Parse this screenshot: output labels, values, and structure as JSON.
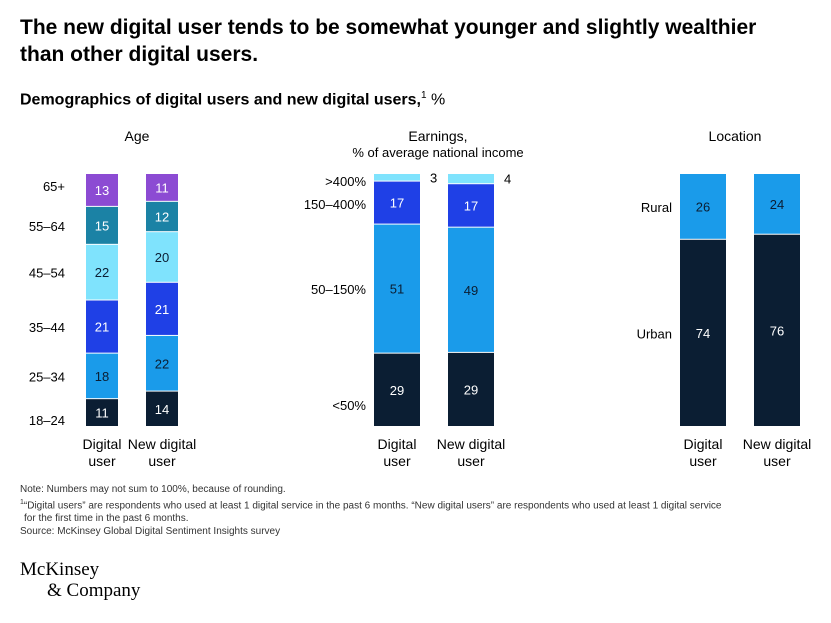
{
  "headline": "The new digital user tends to be somewhat younger and slightly wealthier than other digital users.",
  "subtitle": {
    "text": "Demographics of digital users and new digital users,",
    "footnote_mark": "1",
    "unit": " %"
  },
  "colors": {
    "navy": "#0b1e33",
    "blue": "#1f40e6",
    "mid_blue": "#1a9bea",
    "light_cyan": "#7fe3fd",
    "teal": "#1b82a5",
    "purple": "#8c4bd3",
    "white_text": "#ffffff",
    "dark_text": "#0b1e33"
  },
  "chart_data": [
    {
      "type": "bar",
      "stacked": true,
      "title": "Age",
      "subtitle": "",
      "categories": [
        "Digital user",
        "New digital user"
      ],
      "segment_labels": [
        "18–24",
        "25–34",
        "35–44",
        "45–54",
        "55–64",
        "65+"
      ],
      "series": [
        {
          "name": "18–24",
          "values": [
            11,
            14
          ],
          "color": "#0b1e33",
          "text": "light"
        },
        {
          "name": "25–34",
          "values": [
            18,
            22
          ],
          "color": "#1a9bea",
          "text": "dark"
        },
        {
          "name": "35–44",
          "values": [
            21,
            21
          ],
          "color": "#1f40e6",
          "text": "light"
        },
        {
          "name": "45–54",
          "values": [
            22,
            20
          ],
          "color": "#7fe3fd",
          "text": "dark"
        },
        {
          "name": "55–64",
          "values": [
            15,
            12
          ],
          "color": "#1b82a5",
          "text": "light"
        },
        {
          "name": "65+",
          "values": [
            13,
            11
          ],
          "color": "#8c4bd3",
          "text": "light"
        }
      ],
      "ylim": [
        0,
        100
      ]
    },
    {
      "type": "bar",
      "stacked": true,
      "title": "Earnings,",
      "subtitle": "% of average national income",
      "categories": [
        "Digital user",
        "New digital user"
      ],
      "segment_labels": [
        "<50%",
        "50–150%",
        "150–400%",
        ">400%"
      ],
      "series": [
        {
          "name": "<50%",
          "values": [
            29,
            29
          ],
          "color": "#0b1e33",
          "text": "light"
        },
        {
          "name": "50–150%",
          "values": [
            51,
            49
          ],
          "color": "#1a9bea",
          "text": "dark"
        },
        {
          "name": "150–400%",
          "values": [
            17,
            17
          ],
          "color": "#1f40e6",
          "text": "light"
        },
        {
          "name": ">400%",
          "values": [
            3,
            4
          ],
          "color": "#7fe3fd",
          "text": "outside"
        }
      ],
      "ylim": [
        0,
        100
      ]
    },
    {
      "type": "bar",
      "stacked": true,
      "title": "Location",
      "subtitle": "",
      "categories": [
        "Digital user",
        "New digital user"
      ],
      "segment_labels": [
        "Urban",
        "Rural"
      ],
      "series": [
        {
          "name": "Urban",
          "values": [
            74,
            76
          ],
          "color": "#0b1e33",
          "text": "light"
        },
        {
          "name": "Rural",
          "values": [
            26,
            24
          ],
          "color": "#1a9bea",
          "text": "dark"
        }
      ],
      "ylim": [
        0,
        100
      ]
    }
  ],
  "category_lines": {
    "digital": [
      "Digital",
      "user"
    ],
    "new_digital": [
      "New digital",
      "user"
    ]
  },
  "notes": {
    "line1": "Note: Numbers may not sum to 100%, because of rounding.",
    "line2_mark": "1",
    "line2": "“Digital users” are respondents who used at least 1 digital service in the past 6 months. “New digital users” are respondents who used at least 1 digital service",
    "line3": "for the first time in the past 6 months.",
    "line4": "Source: McKinsey Global Digital Sentiment Insights survey"
  },
  "logo": {
    "line1": "McKinsey",
    "line2": "& Company"
  }
}
